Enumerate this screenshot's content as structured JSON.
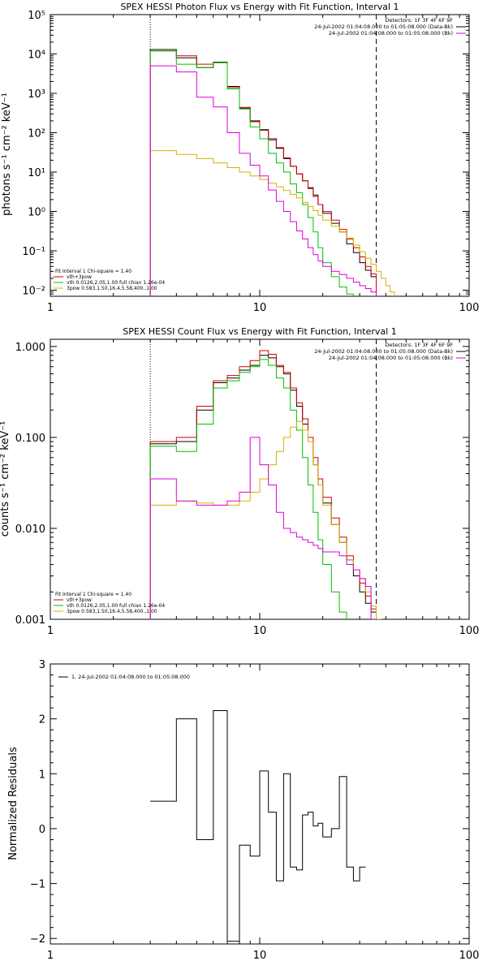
{
  "chart_data": [
    {
      "type": "line",
      "title": "SPEX HESSI Photon Flux vs Energy with Fit Function, Interval 1",
      "xlabel": "",
      "ylabel": "photons s⁻¹ cm⁻² keV⁻¹",
      "xscale": "log",
      "yscale": "log",
      "xlim": [
        1,
        100
      ],
      "ylim": [
        0.007,
        100000
      ],
      "xticks": [
        1,
        10,
        100
      ],
      "xtick_labels": [
        "1",
        "10",
        "100"
      ],
      "yticks": [
        0.01,
        0.1,
        1,
        10,
        100,
        1000,
        10000,
        100000
      ],
      "ytick_labels": [
        "10⁻²",
        "10⁻¹",
        "10⁰",
        "10¹",
        "10²",
        "10³",
        "10⁴",
        "10⁵"
      ],
      "vlines": [
        {
          "x": 3,
          "style": "dotted"
        },
        {
          "x": 36,
          "style": "dashed"
        }
      ],
      "legend_top_right": [
        {
          "text": "Detectors: 1F 3F 4F 6F 9F",
          "color": "#000000"
        },
        {
          "text": "24-Jul-2002 01:04:08.000 to 01:05:08.000 (Data-Bk)",
          "color": "#000000"
        },
        {
          "text": "24-Jul-2002 01:04:08.000 to 01:05:08.000 (Bk)",
          "color": "#dd00dd"
        }
      ],
      "legend_bottom_left": [
        {
          "text": "Fit Interval 1   Chi-square = 1.40",
          "color": "#000000"
        },
        {
          "text": "vth+3pow",
          "color": "#d00000"
        },
        {
          "text": "vth 0.0126,2.05,1.00  full chian 1.26e-04",
          "color": "#00c000"
        },
        {
          "text": "3pow 0.583,1.50,16.4,5.58,400.,1.00",
          "color": "#d8b000"
        }
      ],
      "bin_edges": [
        3,
        4,
        5,
        6,
        7,
        8,
        9,
        10,
        11,
        12,
        13,
        14,
        15,
        16,
        17,
        18,
        19,
        20,
        22,
        24,
        26,
        28,
        30,
        32,
        34,
        36,
        38,
        40,
        42,
        44,
        46,
        48,
        50
      ],
      "series": [
        {
          "name": "Data-Bk",
          "color": "#000000",
          "values": [
            13000,
            8000,
            4500,
            6200,
            1500,
            420,
            200,
            120,
            70,
            40,
            22,
            14,
            9,
            6,
            4,
            2.6,
            1.5,
            0.9,
            0.5,
            0.3,
            0.15,
            0.09,
            0.05,
            0.032,
            0.022,
            null,
            null,
            null,
            null,
            null,
            null,
            null
          ]
        },
        {
          "name": "vth+3pow",
          "color": "#d00000",
          "values": [
            12000,
            9000,
            5500,
            6000,
            1400,
            440,
            190,
            115,
            65,
            42,
            23,
            14,
            9,
            6,
            3.8,
            2.4,
            1.5,
            1.0,
            0.6,
            0.35,
            0.2,
            0.12,
            0.07,
            0.04,
            0.026,
            null,
            null,
            null,
            null,
            null,
            null,
            null
          ]
        },
        {
          "name": "vth",
          "color": "#00c000",
          "values": [
            12000,
            5500,
            4500,
            6000,
            1300,
            400,
            140,
            70,
            30,
            17,
            10,
            5,
            3,
            1.5,
            0.7,
            0.3,
            0.12,
            0.05,
            0.022,
            0.012,
            0.008,
            null,
            null,
            null,
            null,
            null,
            null,
            null,
            null,
            null,
            null,
            null
          ]
        },
        {
          "name": "3pow",
          "color": "#d8b000",
          "values": [
            35,
            28,
            22,
            17,
            13,
            10,
            8,
            6.5,
            5.2,
            4.2,
            3.4,
            2.7,
            2.2,
            1.7,
            1.35,
            1.05,
            0.8,
            0.6,
            0.42,
            0.3,
            0.21,
            0.14,
            0.095,
            0.065,
            0.045,
            0.03,
            0.02,
            0.013,
            0.009,
            null,
            null,
            null
          ]
        },
        {
          "name": "Bk",
          "color": "#dd00dd",
          "values": [
            5000,
            3500,
            800,
            450,
            100,
            30,
            15,
            8,
            3.5,
            1.8,
            1.0,
            0.55,
            0.32,
            0.2,
            0.12,
            0.08,
            0.055,
            0.04,
            0.03,
            0.025,
            0.02,
            0.016,
            0.013,
            0.011,
            0.009,
            null,
            null,
            null,
            null,
            null,
            null,
            null
          ]
        }
      ]
    },
    {
      "type": "line",
      "title": "SPEX HESSI Count Flux vs Energy with Fit Function, Interval 1",
      "xlabel": "",
      "ylabel": "counts s⁻¹ cm⁻² keV⁻¹",
      "xscale": "log",
      "yscale": "log",
      "xlim": [
        1,
        100
      ],
      "ylim": [
        0.001,
        1.2
      ],
      "xticks": [
        1,
        10,
        100
      ],
      "xtick_labels": [
        "1",
        "10",
        "100"
      ],
      "yticks": [
        0.001,
        0.01,
        0.1,
        1
      ],
      "ytick_labels": [
        "0.001",
        "0.010",
        "0.100",
        "1.000"
      ],
      "vlines": [
        {
          "x": 3,
          "style": "dotted"
        },
        {
          "x": 36,
          "style": "dashed"
        }
      ],
      "legend_top_right": [
        {
          "text": "Detectors: 1F 3F 4F 6F 9F",
          "color": "#000000"
        },
        {
          "text": "24-Jul-2002 01:04:08.000 to 01:05:08.000 (Data-Bk)",
          "color": "#000000"
        },
        {
          "text": "24-Jul-2002 01:04:08.000 to 01:05:08.000 (Bk)",
          "color": "#dd00dd"
        }
      ],
      "legend_bottom_left": [
        {
          "text": "Fit Interval 1   Chi-square = 1.40",
          "color": "#000000"
        },
        {
          "text": "vth+3pow",
          "color": "#d00000"
        },
        {
          "text": "vth 0.0126,2.05,1.00  full chian 1.26e-04",
          "color": "#00c000"
        },
        {
          "text": "3pow 0.583,1.50,16.4,5.58,400.,1.00",
          "color": "#d8b000"
        }
      ],
      "bin_edges": [
        3,
        4,
        5,
        6,
        7,
        8,
        9,
        10,
        11,
        12,
        13,
        14,
        15,
        16,
        17,
        18,
        19,
        20,
        22,
        24,
        26,
        28,
        30,
        32,
        34,
        36,
        38,
        40,
        42,
        44,
        46,
        48,
        50
      ],
      "series": [
        {
          "name": "Data-Bk",
          "color": "#000000",
          "values": [
            0.085,
            0.09,
            0.2,
            0.4,
            0.45,
            0.55,
            0.62,
            0.8,
            0.75,
            0.6,
            0.5,
            0.33,
            0.22,
            0.14,
            0.09,
            0.05,
            0.03,
            0.019,
            0.011,
            0.007,
            0.0045,
            0.003,
            0.002,
            0.0015,
            0.0012,
            null,
            null,
            null,
            null,
            null,
            null,
            null
          ]
        },
        {
          "name": "vth+3pow",
          "color": "#d00000",
          "values": [
            0.09,
            0.1,
            0.22,
            0.42,
            0.48,
            0.6,
            0.7,
            0.9,
            0.82,
            0.62,
            0.52,
            0.35,
            0.24,
            0.16,
            0.1,
            0.06,
            0.035,
            0.022,
            0.013,
            0.008,
            0.005,
            0.0035,
            0.0025,
            0.0018,
            0.0013,
            null,
            null,
            null,
            null,
            null,
            null,
            null
          ]
        },
        {
          "name": "vth",
          "color": "#00c000",
          "values": [
            0.08,
            0.07,
            0.14,
            0.35,
            0.42,
            0.52,
            0.6,
            0.72,
            0.62,
            0.45,
            0.35,
            0.2,
            0.12,
            0.06,
            0.03,
            0.015,
            0.0075,
            0.004,
            0.002,
            0.0012,
            null,
            null,
            null,
            null,
            null,
            null,
            null,
            null,
            null,
            null,
            null,
            null
          ]
        },
        {
          "name": "3pow",
          "color": "#d8b000",
          "values": [
            0.018,
            0.02,
            0.019,
            0.018,
            0.018,
            0.02,
            0.025,
            0.035,
            0.05,
            0.07,
            0.1,
            0.13,
            0.15,
            0.12,
            0.09,
            0.05,
            0.03,
            0.018,
            0.011,
            0.007,
            0.0045,
            0.0035,
            0.0028,
            0.002,
            0.0014,
            0.001,
            null,
            null,
            null,
            null,
            null,
            null
          ]
        },
        {
          "name": "Bk",
          "color": "#dd00dd",
          "values": [
            0.035,
            0.02,
            0.018,
            0.018,
            0.02,
            0.025,
            0.1,
            0.05,
            0.03,
            0.015,
            0.01,
            0.009,
            0.008,
            0.0075,
            0.007,
            0.0065,
            0.006,
            0.0055,
            0.0055,
            0.005,
            0.004,
            0.0035,
            0.0028,
            0.0023,
            0.001,
            null,
            null,
            null,
            null,
            null,
            null,
            null
          ]
        }
      ]
    },
    {
      "type": "line",
      "title": "",
      "xlabel": "",
      "ylabel": "Normalized Residuals",
      "xscale": "log",
      "yscale": "linear",
      "xlim": [
        1,
        100
      ],
      "ylim": [
        -2.1,
        3
      ],
      "xticks": [
        1,
        10,
        100
      ],
      "xtick_labels": [
        "1",
        "10",
        "100"
      ],
      "yticks": [
        -2,
        -1,
        0,
        1,
        2,
        3
      ],
      "ytick_labels": [
        "−2",
        "−1",
        "0",
        "1",
        "2",
        "3"
      ],
      "legend_top_left": [
        {
          "text": "1. 24-Jul-2002 01:04:08.000 to 01:05:08.000",
          "color": "#000000"
        }
      ],
      "bin_edges": [
        3,
        4,
        5,
        6,
        7,
        8,
        9,
        10,
        11,
        12,
        13,
        14,
        15,
        16,
        17,
        18,
        19,
        20,
        22,
        24,
        26,
        28,
        30,
        32,
        34,
        36,
        38
      ],
      "series": [
        {
          "name": "",
          "color": "#000000",
          "values": [
            0.5,
            2.0,
            -0.2,
            2.15,
            -2.05,
            -0.3,
            -0.5,
            1.05,
            0.3,
            -0.95,
            1.0,
            -0.7,
            -0.75,
            0.25,
            0.3,
            0.05,
            0.1,
            -0.15,
            0.0,
            0.95,
            -0.7,
            -0.95,
            -0.7,
            null,
            null,
            null
          ]
        }
      ]
    }
  ]
}
